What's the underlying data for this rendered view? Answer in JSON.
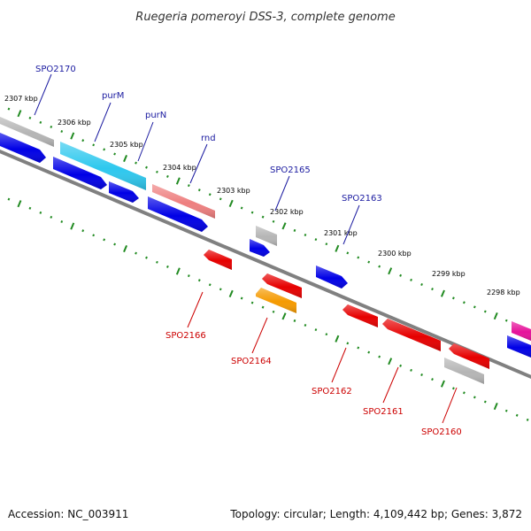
{
  "title": "Ruegeria pomeroyi DSS-3, complete genome",
  "footer": {
    "accession": "Accession: NC_003911",
    "topology": "Topology: circular; Length: 4,109,442 bp; Genes: 3,872"
  },
  "colors": {
    "backbone": "#808080",
    "ticks": "#228b22",
    "forward_label": "#1a1aa0",
    "reverse_label": "#cc0000",
    "blue": "#0000e6",
    "cyan": "#2ec8ee",
    "salmon": "#ee7f7f",
    "gray": "#b5b5b5",
    "red": "#e60000",
    "orange": "#f59a00",
    "magenta": "#e6119a"
  },
  "ticks": [
    "2307 kbp",
    "2306 kbp",
    "2305 kbp",
    "2304 kbp",
    "2303 kbp",
    "2302 kbp",
    "2301 kbp",
    "2300 kbp",
    "2299 kbp",
    "2298 kbp"
  ],
  "labels": {
    "forward": [
      "SPO2170",
      "purM",
      "purN",
      "rnd",
      "SPO2165",
      "SPO2163"
    ],
    "reverse": [
      "SPO2166",
      "SPO2164",
      "SPO2162",
      "SPO2161",
      "SPO2160"
    ]
  },
  "genes": [
    {
      "color": "gray"
    },
    {
      "color": "cyan"
    },
    {
      "color": "salmon"
    },
    {
      "color": "gray"
    },
    {
      "color": "magenta"
    },
    {
      "color": "blue"
    },
    {
      "color": "blue"
    },
    {
      "color": "blue"
    },
    {
      "color": "blue"
    },
    {
      "color": "blue"
    },
    {
      "color": "blue"
    },
    {
      "color": "blue"
    },
    {
      "color": "red"
    },
    {
      "color": "red"
    },
    {
      "color": "orange"
    },
    {
      "color": "red"
    },
    {
      "color": "red"
    },
    {
      "color": "red"
    },
    {
      "color": "gray"
    }
  ]
}
